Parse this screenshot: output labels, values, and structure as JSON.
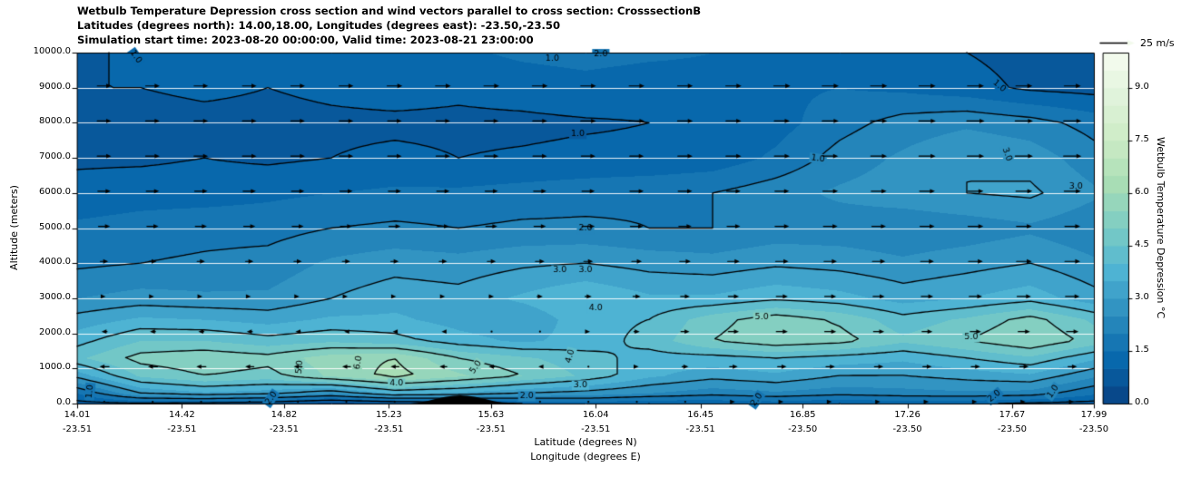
{
  "title": {
    "line1": "Wetbulb Temperature Depression cross section and wind vectors parallel to cross section: CrosssectionB",
    "line2": "Latitudes (degrees north): 14.00,18.00, Longitudes (degrees east): -23.50,-23.50",
    "line3": "Simulation start time: 2023-08-20 00:00:00, Valid time: 2023-08-21 23:00:00"
  },
  "axes": {
    "ylabel": "Altitude (meters)",
    "xlabel_lat": "Latitude (degrees N)",
    "xlabel_lon": "Longitude (degrees E)",
    "y_ticks": [
      "10000.0",
      "9000.0",
      "8000.0",
      "7000.0",
      "6000.0",
      "5000.0",
      "4000.0",
      "3000.0",
      "2000.0",
      "1000.0",
      "0.0"
    ],
    "x_ticks": [
      {
        "lat": "14.01",
        "lon": "-23.51"
      },
      {
        "lat": "14.42",
        "lon": "-23.51"
      },
      {
        "lat": "14.82",
        "lon": "-23.51"
      },
      {
        "lat": "15.23",
        "lon": "-23.51"
      },
      {
        "lat": "15.63",
        "lon": "-23.51"
      },
      {
        "lat": "16.04",
        "lon": "-23.51"
      },
      {
        "lat": "16.45",
        "lon": "-23.51"
      },
      {
        "lat": "16.85",
        "lon": "-23.50"
      },
      {
        "lat": "17.26",
        "lon": "-23.50"
      },
      {
        "lat": "17.67",
        "lon": "-23.50"
      },
      {
        "lat": "17.99",
        "lon": "-23.50"
      }
    ]
  },
  "colorbar": {
    "label": "Wetbulb Temperature Depression °C",
    "ticks": [
      "0.0",
      "1.5",
      "3.0",
      "4.5",
      "6.0",
      "7.5",
      "9.0"
    ],
    "vmin": 0,
    "vmax": 10
  },
  "wind_legend": {
    "label": "25 m/s",
    "speed": 25
  },
  "chart_data": {
    "type": "heatmap",
    "subtype": "filled-contour-cross-section-with-wind-vectors",
    "x_axis": "latitude_degrees_N",
    "x_range": [
      14.01,
      17.99
    ],
    "y_axis": "altitude_meters",
    "y_range": [
      0,
      10000
    ],
    "units": "degC",
    "fill_step": 0.5,
    "contour_levels": [
      1,
      2,
      3,
      4,
      5,
      6
    ],
    "colormap_stops": [
      "#084081",
      "#0868ac",
      "#2b8cbe",
      "#4eb3d3",
      "#7bccc4",
      "#a8ddb5",
      "#ccebc5",
      "#e0f3db",
      "#f7fcf0"
    ],
    "lat_samples": [
      14.01,
      14.26,
      14.51,
      14.76,
      15.01,
      15.25,
      15.5,
      15.75,
      16.0,
      16.25,
      16.5,
      16.74,
      16.99,
      17.24,
      17.49,
      17.74,
      17.99
    ],
    "alt_levels": [
      0,
      300,
      800,
      1300,
      1800,
      2400,
      3000,
      4000,
      5000,
      6000,
      7000,
      8000,
      9000,
      10000
    ],
    "values": [
      [
        0.8,
        0.9,
        0.8,
        0.6,
        0.2,
        0.4,
        0.6,
        1.0,
        1.2,
        1.0,
        1.1,
        1.2,
        1.0,
        1.2,
        1.1,
        0.9,
        0.8
      ],
      [
        1.5,
        3.0,
        3.4,
        3.2,
        2.6,
        3.6,
        3.4,
        3.0,
        2.8,
        2.5,
        2.2,
        2.4,
        2.2,
        2.3,
        2.4,
        2.3,
        1.6
      ],
      [
        3.2,
        4.6,
        5.0,
        4.8,
        5.6,
        6.2,
        5.6,
        5.0,
        4.4,
        3.6,
        3.2,
        3.4,
        3.0,
        3.0,
        3.2,
        3.4,
        2.6
      ],
      [
        4.4,
        5.2,
        5.4,
        5.2,
        5.8,
        6.0,
        5.0,
        4.6,
        4.2,
        3.8,
        3.8,
        4.0,
        3.8,
        3.6,
        4.0,
        4.4,
        3.6
      ],
      [
        3.8,
        4.5,
        4.5,
        4.2,
        4.4,
        4.2,
        3.7,
        3.4,
        3.7,
        4.2,
        5.0,
        5.4,
        5.2,
        4.6,
        5.0,
        5.5,
        4.8
      ],
      [
        3.2,
        3.6,
        3.5,
        3.3,
        3.6,
        3.6,
        3.3,
        3.1,
        3.8,
        4.0,
        4.8,
        5.3,
        4.9,
        4.2,
        4.6,
        5.2,
        4.4
      ],
      [
        2.5,
        2.7,
        2.6,
        2.6,
        3.0,
        3.3,
        3.2,
        3.6,
        4.0,
        3.6,
        3.6,
        3.9,
        3.7,
        3.3,
        3.5,
        3.8,
        3.2
      ],
      [
        1.9,
        2.0,
        2.1,
        2.2,
        2.6,
        2.8,
        2.7,
        2.9,
        3.0,
        2.8,
        2.7,
        2.9,
        2.8,
        2.6,
        2.8,
        3.0,
        2.6
      ],
      [
        1.6,
        1.7,
        1.8,
        1.8,
        2.0,
        2.1,
        2.0,
        2.1,
        2.1,
        2.0,
        2.0,
        2.2,
        2.2,
        2.1,
        2.2,
        2.4,
        2.1
      ],
      [
        1.2,
        1.3,
        1.3,
        1.4,
        1.5,
        1.6,
        1.6,
        1.7,
        1.8,
        1.9,
        2.0,
        2.3,
        2.6,
        2.8,
        3.0,
        3.1,
        2.6
      ],
      [
        0.9,
        0.9,
        1.0,
        0.9,
        1.0,
        1.1,
        1.0,
        1.05,
        1.1,
        1.1,
        1.2,
        1.6,
        2.2,
        2.6,
        3.0,
        2.8,
        2.2
      ],
      [
        0.8,
        0.8,
        0.85,
        0.85,
        0.9,
        0.9,
        0.9,
        0.9,
        0.95,
        1.0,
        1.1,
        1.3,
        1.8,
        2.2,
        2.4,
        2.2,
        1.8
      ],
      [
        1.0,
        1.0,
        1.1,
        1.0,
        1.1,
        1.2,
        1.1,
        1.2,
        1.3,
        1.2,
        1.3,
        1.4,
        1.5,
        1.4,
        1.2,
        0.9,
        0.8
      ],
      [
        0.9,
        1.1,
        1.2,
        1.3,
        1.4,
        1.5,
        1.4,
        1.6,
        1.7,
        1.6,
        1.5,
        1.4,
        1.3,
        1.2,
        1.0,
        0.8,
        0.7
      ]
    ],
    "wind_u_ms": [
      [
        -1,
        -1,
        -1,
        -1,
        -0.5,
        0.5,
        1,
        1,
        1,
        1.5,
        2,
        2,
        2,
        2,
        2,
        2,
        2
      ],
      [
        -3,
        -3,
        -3,
        -3,
        -2,
        -2,
        -1,
        0,
        1,
        2,
        3,
        3,
        3,
        3,
        3,
        3,
        3
      ],
      [
        -7,
        -7,
        -7,
        -6,
        -6,
        -6,
        -5,
        -3,
        0,
        3,
        5,
        6,
        6,
        6,
        6,
        6,
        6
      ],
      [
        -8,
        -8,
        -8,
        -7,
        -7,
        -7,
        -6,
        -4,
        0,
        4,
        7,
        8,
        8,
        8,
        8,
        8,
        8
      ],
      [
        -6,
        -6,
        -6,
        -6,
        -5,
        -5,
        -4,
        -2,
        2,
        5,
        8,
        9,
        9,
        8,
        8,
        9,
        9
      ],
      [
        -2,
        -2,
        -2,
        -2,
        -1,
        -1,
        0,
        1,
        3,
        5,
        8,
        9,
        9,
        8,
        9,
        10,
        10
      ],
      [
        2,
        2,
        2,
        2,
        2,
        2,
        3,
        4,
        5,
        6,
        8,
        9,
        9,
        9,
        10,
        11,
        11
      ],
      [
        6,
        6,
        6,
        6,
        6,
        6,
        6,
        7,
        7,
        8,
        9,
        10,
        10,
        10,
        11,
        12,
        12
      ],
      [
        9,
        9,
        9,
        9,
        9,
        9,
        9,
        9,
        10,
        10,
        10,
        11,
        11,
        11,
        12,
        12,
        12
      ],
      [
        10,
        10,
        10,
        10,
        10,
        10,
        10,
        10,
        10,
        11,
        11,
        11,
        12,
        12,
        12,
        13,
        13
      ],
      [
        11,
        11,
        11,
        11,
        11,
        11,
        11,
        11,
        11,
        11,
        12,
        12,
        12,
        13,
        13,
        14,
        14
      ],
      [
        11,
        11,
        11,
        11,
        11,
        11,
        11,
        11,
        12,
        12,
        12,
        12,
        13,
        13,
        14,
        14,
        14
      ],
      [
        11,
        11,
        11,
        11,
        11,
        12,
        12,
        12,
        12,
        12,
        12,
        13,
        13,
        13,
        13,
        13,
        13
      ],
      [
        10,
        10,
        10,
        11,
        11,
        11,
        11,
        12,
        12,
        12,
        12,
        12,
        12,
        12,
        12,
        12,
        12
      ]
    ],
    "contour_labels": [
      {
        "lat": 14.24,
        "alt": 9880,
        "text": "1.0",
        "rot": -55
      },
      {
        "lat": 15.87,
        "alt": 9820,
        "text": "1.0",
        "rot": 0
      },
      {
        "lat": 16.06,
        "alt": 9960,
        "text": "2.0",
        "rot": 0
      },
      {
        "lat": 17.62,
        "alt": 9050,
        "text": "1.0",
        "rot": -40
      },
      {
        "lat": 15.97,
        "alt": 7680,
        "text": "1.0",
        "rot": 0
      },
      {
        "lat": 16.91,
        "alt": 6980,
        "text": "1.0",
        "rot": -8
      },
      {
        "lat": 17.65,
        "alt": 7100,
        "text": "3.0",
        "rot": -70
      },
      {
        "lat": 17.92,
        "alt": 6200,
        "text": "3.0",
        "rot": 0
      },
      {
        "lat": 16.0,
        "alt": 4990,
        "text": "2.0",
        "rot": 0
      },
      {
        "lat": 15.9,
        "alt": 3800,
        "text": "3.0",
        "rot": 0
      },
      {
        "lat": 16.0,
        "alt": 3800,
        "text": "3.0",
        "rot": 0
      },
      {
        "lat": 16.04,
        "alt": 2715,
        "text": "4.0",
        "rot": 0
      },
      {
        "lat": 16.69,
        "alt": 2455,
        "text": "5.0",
        "rot": 0
      },
      {
        "lat": 17.51,
        "alt": 1890,
        "text": "5.0",
        "rot": 0
      },
      {
        "lat": 14.88,
        "alt": 1040,
        "text": "5.0",
        "rot": 85
      },
      {
        "lat": 15.11,
        "alt": 1165,
        "text": "6.0",
        "rot": 80
      },
      {
        "lat": 15.57,
        "alt": 1035,
        "text": "5.0",
        "rot": 55
      },
      {
        "lat": 15.94,
        "alt": 1350,
        "text": "4.0",
        "rot": 75
      },
      {
        "lat": 15.98,
        "alt": 520,
        "text": "3.0",
        "rot": 0
      },
      {
        "lat": 15.26,
        "alt": 570,
        "text": "4.0",
        "rot": 0
      },
      {
        "lat": 14.77,
        "alt": 150,
        "text": "2.0",
        "rot": 55
      },
      {
        "lat": 15.77,
        "alt": 210,
        "text": "2.0",
        "rot": 0
      },
      {
        "lat": 16.67,
        "alt": 110,
        "text": "2.0",
        "rot": 55
      },
      {
        "lat": 17.6,
        "alt": 210,
        "text": "2.0",
        "rot": 40
      },
      {
        "lat": 14.06,
        "alt": 340,
        "text": "1.0",
        "rot": 85
      },
      {
        "lat": 17.83,
        "alt": 340,
        "text": "1.0",
        "rot": 55
      }
    ],
    "terrain": {
      "lat_min": 15.3,
      "lat_max": 15.72,
      "peak_alt_m": 230
    }
  }
}
